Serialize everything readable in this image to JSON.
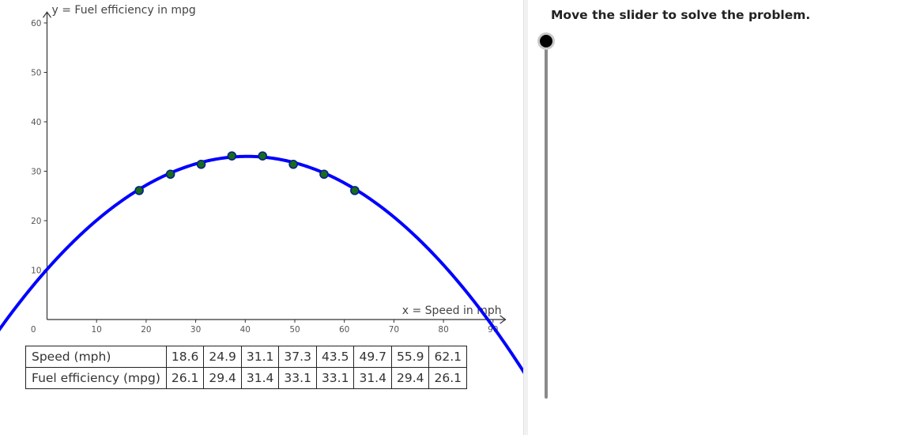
{
  "instruction": "Move the slider to solve the problem.",
  "colors": {
    "curve": "#0000ff",
    "point_fill": "#1a6b1a",
    "point_stroke": "#001f8f",
    "axis": "#333333"
  },
  "table": {
    "row_headers": [
      "Speed (mph)",
      "Fuel efficiency (mpg)"
    ],
    "speed": [
      "18.6",
      "24.9",
      "31.1",
      "37.3",
      "43.5",
      "49.7",
      "55.9",
      "62.1"
    ],
    "efficiency": [
      "26.1",
      "29.4",
      "31.4",
      "33.1",
      "33.1",
      "31.4",
      "29.4",
      "26.1"
    ]
  },
  "slider": {
    "value": 0
  },
  "chart_data": {
    "type": "scatter",
    "xlabel": "x = Speed in mph",
    "ylabel": "y = Fuel efficiency in mpg",
    "xlim": [
      -9.5,
      93
    ],
    "ylim": [
      -4,
      63
    ],
    "xticks": [
      10,
      20,
      30,
      40,
      50,
      60,
      70,
      80,
      90
    ],
    "yticks": [
      10,
      20,
      30,
      40,
      50,
      60
    ],
    "origin_label": "0",
    "grid": false,
    "series": [
      {
        "x": [
          18.6,
          24.9,
          31.1,
          37.3,
          43.5,
          49.7,
          55.9,
          62.1
        ],
        "y": [
          26.1,
          29.4,
          31.4,
          33.1,
          33.1,
          31.4,
          29.4,
          26.1
        ]
      }
    ],
    "curve": {
      "type": "quadratic",
      "a": -0.014,
      "h": 40.4,
      "k": 33.0
    }
  }
}
